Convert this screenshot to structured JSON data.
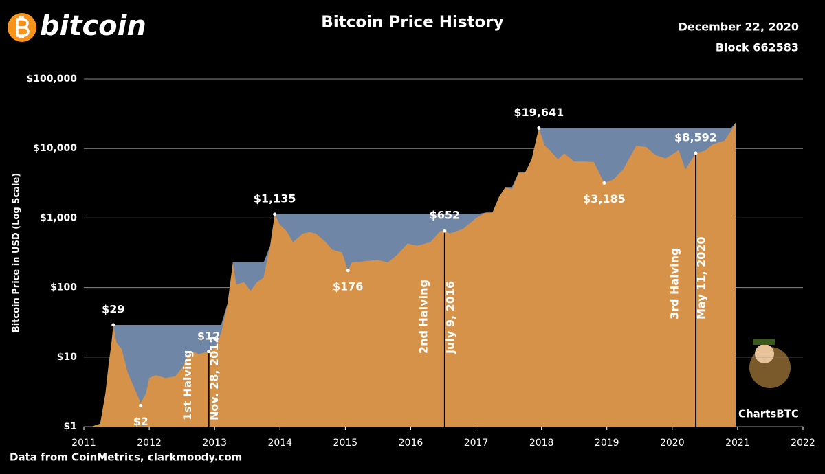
{
  "chart_data": {
    "type": "area",
    "brand": "bitcoin",
    "title": "Bitcoin Price History",
    "date": "December 22, 2020",
    "block": "Block 662583",
    "ylabel": "Bitcoin Price in USD (Log Scale)",
    "source": "Data from CoinMetrics, clarkmoody.com",
    "watermark": "ChartsBTC",
    "yscale": "log",
    "grid": true,
    "xlim": [
      2011,
      2022
    ],
    "xticks": [
      2011,
      2012,
      2013,
      2014,
      2015,
      2016,
      2017,
      2018,
      2019,
      2020,
      2021,
      2022
    ],
    "ylim": [
      1,
      100000
    ],
    "yticks": [
      {
        "value": 1,
        "label": "$1"
      },
      {
        "value": 10,
        "label": "$10"
      },
      {
        "value": 100,
        "label": "$100"
      },
      {
        "value": 1000,
        "label": "$1,000"
      },
      {
        "value": 10000,
        "label": "$10,000"
      },
      {
        "value": 100000,
        "label": "$100,000"
      }
    ],
    "drawdown_color": "#6f86a6",
    "x": [
      2011.0,
      2011.12,
      2011.25,
      2011.33,
      2011.38,
      2011.42,
      2011.45,
      2011.5,
      2011.58,
      2011.67,
      2011.75,
      2011.87,
      2011.95,
      2012.0,
      2012.1,
      2012.25,
      2012.4,
      2012.5,
      2012.6,
      2012.67,
      2012.75,
      2012.91,
      2013.0,
      2013.1,
      2013.2,
      2013.28,
      2013.33,
      2013.45,
      2013.55,
      2013.65,
      2013.75,
      2013.85,
      2013.92,
      2014.0,
      2014.1,
      2014.2,
      2014.35,
      2014.45,
      2014.55,
      2014.7,
      2014.8,
      2014.95,
      2015.04,
      2015.1,
      2015.3,
      2015.5,
      2015.65,
      2015.8,
      2015.95,
      2016.1,
      2016.3,
      2016.45,
      2016.52,
      2016.6,
      2016.8,
      2017.0,
      2017.15,
      2017.25,
      2017.35,
      2017.45,
      2017.55,
      2017.65,
      2017.75,
      2017.85,
      2017.96,
      2018.05,
      2018.15,
      2018.25,
      2018.35,
      2018.5,
      2018.65,
      2018.8,
      2018.96,
      2019.1,
      2019.25,
      2019.45,
      2019.6,
      2019.75,
      2019.9,
      2020.1,
      2020.2,
      2020.36,
      2020.5,
      2020.62,
      2020.8,
      2020.9,
      2020.97
    ],
    "series": [
      {
        "color": "#d69248",
        "values": [
          1.0,
          1.0,
          1.1,
          3,
          8,
          15,
          29,
          16,
          13,
          6,
          4,
          2.2,
          3,
          5,
          5.5,
          5,
          5.3,
          7,
          11,
          12,
          11,
          12,
          13.5,
          22,
          60,
          230,
          110,
          120,
          90,
          120,
          140,
          400,
          1135,
          800,
          650,
          450,
          600,
          630,
          600,
          450,
          350,
          320,
          176,
          230,
          240,
          250,
          230,
          300,
          430,
          400,
          450,
          650,
          652,
          600,
          700,
          1000,
          1200,
          1200,
          2000,
          2800,
          2600,
          4500,
          4500,
          7000,
          19641,
          11000,
          9000,
          7000,
          8500,
          6500,
          6500,
          6400,
          3185,
          3600,
          5000,
          11000,
          10500,
          8000,
          7200,
          9500,
          5000,
          8592,
          9300,
          11500,
          13000,
          18000,
          23500
        ]
      }
    ],
    "annotations": [
      {
        "x": 2011.45,
        "value": 29,
        "label": "$29"
      },
      {
        "x": 2011.87,
        "value": 2,
        "label": "$2"
      },
      {
        "x": 2012.91,
        "value": 12,
        "label": "$12"
      },
      {
        "x": 2013.92,
        "value": 1135,
        "label": "$1,135"
      },
      {
        "x": 2015.04,
        "value": 176,
        "label": "$176"
      },
      {
        "x": 2016.52,
        "value": 652,
        "label": "$652"
      },
      {
        "x": 2017.96,
        "value": 19641,
        "label": "$19,641"
      },
      {
        "x": 2018.96,
        "value": 3185,
        "label": "$3,185"
      },
      {
        "x": 2020.36,
        "value": 8592,
        "label": "$8,592"
      }
    ],
    "halvings": [
      {
        "x": 2012.91,
        "value": 12,
        "label": "1st Halving",
        "date": "Nov. 28, 2012"
      },
      {
        "x": 2016.52,
        "value": 652,
        "label": "2nd Halving",
        "date": "July 9, 2016"
      },
      {
        "x": 2020.36,
        "value": 8592,
        "label": "3rd Halving",
        "date": "May 11, 2020"
      }
    ]
  }
}
